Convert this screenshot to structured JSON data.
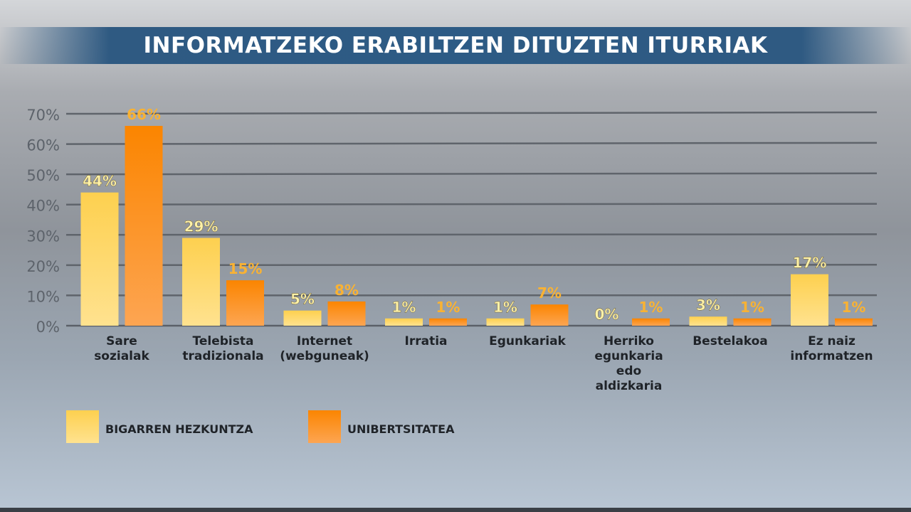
{
  "title": "INFORMATZEKO ERABILTZEN DITUZTEN ITURRIAK",
  "chart_data": {
    "type": "bar",
    "title": "INFORMATZEKO ERABILTZEN DITUZTEN ITURRIAK",
    "categories": [
      [
        "Sare",
        "sozialak"
      ],
      [
        "Telebista",
        "tradizionala"
      ],
      [
        "Internet",
        "(webguneak)"
      ],
      [
        "Irratia"
      ],
      [
        "Egunkariak"
      ],
      [
        "Herriko",
        "egunkaria",
        "edo",
        "aldizkaria"
      ],
      [
        "Bestelakoa"
      ],
      [
        "Ez naiz",
        "informatzen"
      ]
    ],
    "series": [
      {
        "name": "BIGARREN HEZKUNTZA",
        "values": [
          44,
          29,
          5,
          1,
          1,
          0,
          3,
          17
        ],
        "color": "#fdd467"
      },
      {
        "name": "UNIBERTSITATEA",
        "values": [
          66,
          15,
          8,
          1,
          7,
          1,
          1,
          1
        ],
        "color": "#fb8c10"
      }
    ],
    "data_labels": [
      [
        "44%",
        "29%",
        "5%",
        "1%",
        "1%",
        "0%",
        "3%",
        "17%"
      ],
      [
        "66%",
        "15%",
        "8%",
        "1%",
        "7%",
        "1%",
        "1%",
        "1%"
      ]
    ],
    "label_colors": [
      "#fff2a8",
      "#f9b233"
    ],
    "yticks": [
      "0%",
      "10%",
      "20%",
      "30%",
      "40%",
      "50%",
      "60%",
      "70%"
    ],
    "ylim": [
      0,
      70
    ],
    "grid": true,
    "legend": "bottom-left",
    "xlabel": "",
    "ylabel": ""
  }
}
